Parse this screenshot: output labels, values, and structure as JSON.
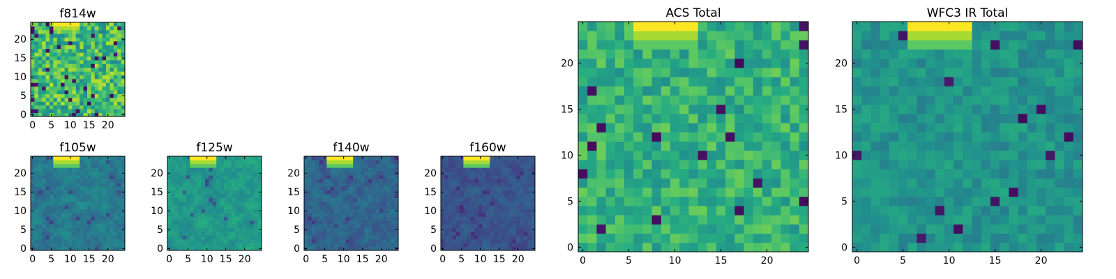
{
  "chart_data": [
    {
      "id": "f814w",
      "type": "heatmap",
      "title": "f814w",
      "colormap": "viridis",
      "grid_size": 25,
      "seed": 11,
      "profile": "acs",
      "x_ticks": [
        "0",
        "5",
        "10",
        "15",
        "20"
      ],
      "y_ticks": [
        "0",
        "5",
        "10",
        "15",
        "20"
      ]
    },
    {
      "id": "f105w",
      "type": "heatmap",
      "title": "f105w",
      "colormap": "viridis",
      "grid_size": 25,
      "seed": 21,
      "profile": "ir",
      "x_ticks": [
        "0",
        "5",
        "10",
        "15",
        "20"
      ],
      "y_ticks": [
        "0",
        "5",
        "10",
        "15",
        "20"
      ]
    },
    {
      "id": "f125w",
      "type": "heatmap",
      "title": "f125w",
      "colormap": "viridis",
      "grid_size": 25,
      "seed": 31,
      "profile": "ir_bright",
      "x_ticks": [
        "0",
        "5",
        "10",
        "15",
        "20"
      ],
      "y_ticks": [
        "0",
        "5",
        "10",
        "15",
        "20"
      ]
    },
    {
      "id": "f140w",
      "type": "heatmap",
      "title": "f140w",
      "colormap": "viridis",
      "grid_size": 25,
      "seed": 41,
      "profile": "ir_dark",
      "x_ticks": [
        "0",
        "5",
        "10",
        "15",
        "20"
      ],
      "y_ticks": [
        "0",
        "5",
        "10",
        "15",
        "20"
      ]
    },
    {
      "id": "f160w",
      "type": "heatmap",
      "title": "f160w",
      "colormap": "viridis",
      "grid_size": 25,
      "seed": 51,
      "profile": "ir_darker",
      "x_ticks": [
        "0",
        "5",
        "10",
        "15",
        "20"
      ],
      "y_ticks": [
        "0",
        "5",
        "10",
        "15",
        "20"
      ]
    },
    {
      "id": "acs_total",
      "type": "heatmap",
      "title": "ACS Total",
      "colormap": "viridis",
      "grid_size": 25,
      "seed": 61,
      "profile": "total_acs",
      "x_ticks": [
        "0",
        "5",
        "10",
        "15",
        "20"
      ],
      "y_ticks": [
        "0",
        "5",
        "10",
        "15",
        "20"
      ]
    },
    {
      "id": "wfc3_total",
      "type": "heatmap",
      "title": "WFC3 IR Total",
      "colormap": "viridis",
      "grid_size": 25,
      "seed": 71,
      "profile": "total_ir",
      "x_ticks": [
        "0",
        "5",
        "10",
        "15",
        "20"
      ],
      "y_ticks": [
        "0",
        "5",
        "10",
        "15",
        "20"
      ]
    }
  ]
}
